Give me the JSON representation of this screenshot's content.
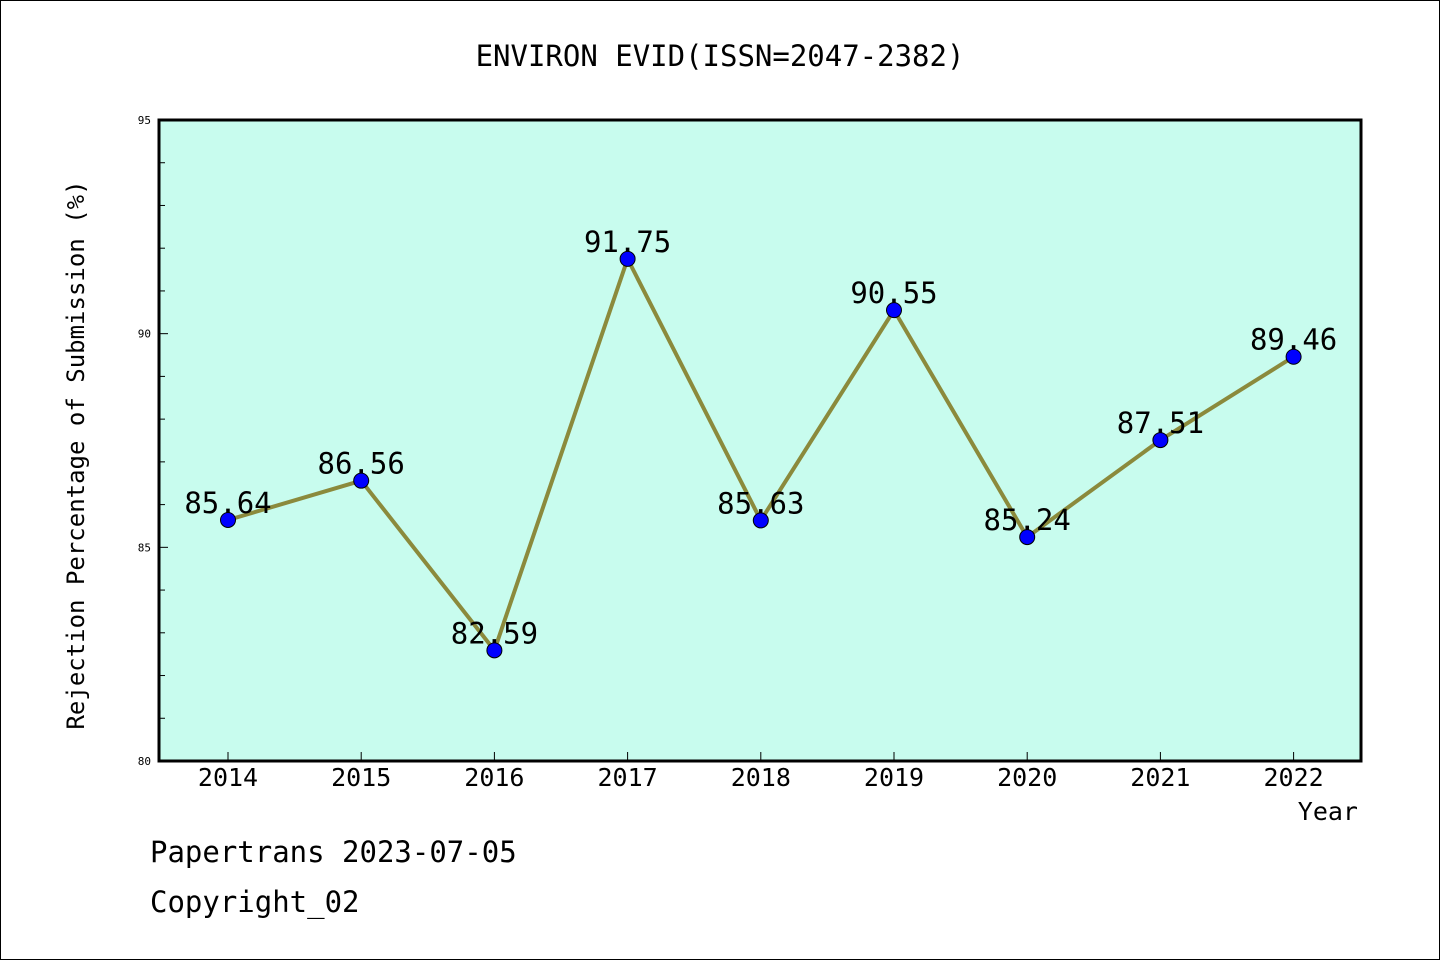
{
  "chart_data": {
    "type": "line",
    "title": "ENVIRON EVID(ISSN=2047-2382)",
    "xlabel": "Year",
    "ylabel": "Rejection Percentage of Submission (%)",
    "x": [
      "2014",
      "2015",
      "2016",
      "2017",
      "2018",
      "2019",
      "2020",
      "2021",
      "2022"
    ],
    "series": [
      {
        "values": [
          85.64,
          86.56,
          82.59,
          91.75,
          85.63,
          90.55,
          85.24,
          87.51,
          89.46
        ],
        "labels": [
          "85.64",
          "86.56",
          "82.59",
          "91.75",
          "85.63",
          "90.55",
          "85.24",
          "87.51",
          "89.46"
        ],
        "line_color": "#8b8a3c",
        "marker_color": "#0000ff"
      }
    ],
    "ylim": [
      80,
      95
    ],
    "yticks": [
      "80",
      "85",
      "90",
      "95"
    ],
    "plot_background": "#c8fcee",
    "grid": false,
    "legend": "none"
  },
  "footer": {
    "line1": "Papertrans 2023-07-05",
    "line2": "Copyright_02"
  }
}
